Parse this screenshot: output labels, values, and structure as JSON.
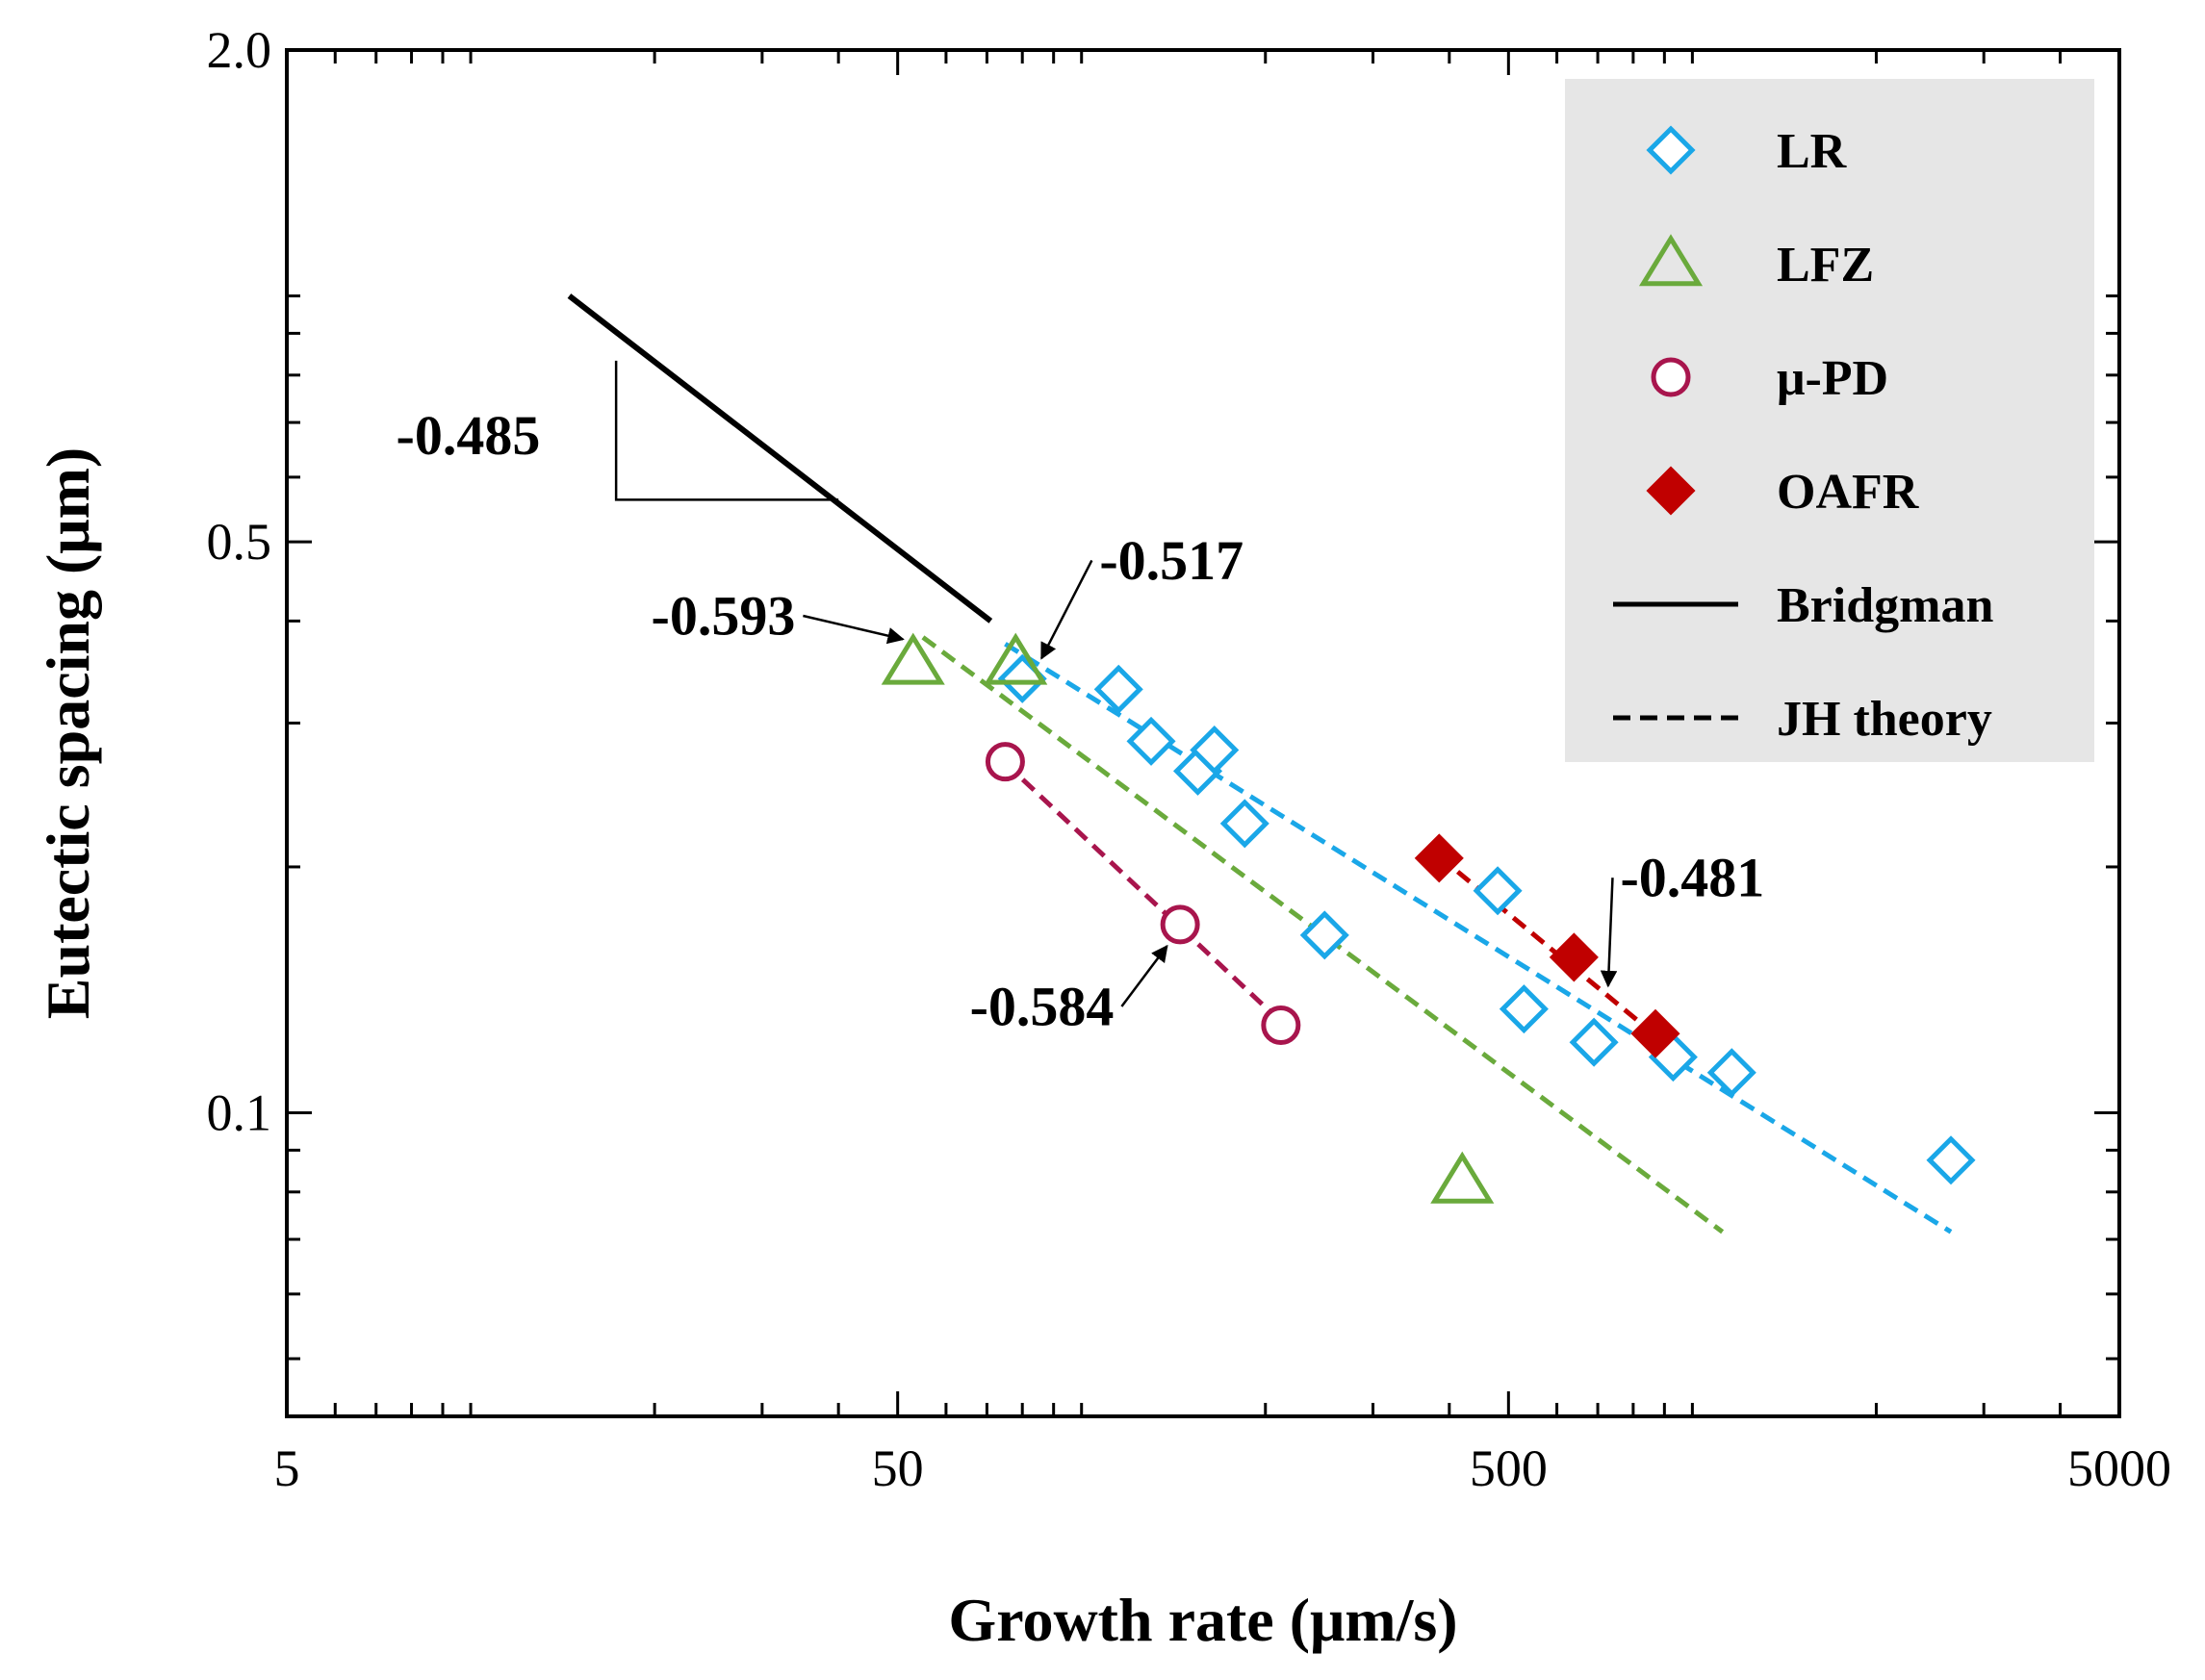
{
  "chart_data": {
    "type": "scatter",
    "title": "",
    "xlabel": "Growth rate (μm/s)",
    "ylabel": "Eutectic spacing (μm)",
    "xscale": "log",
    "yscale": "log",
    "xlim": [
      5,
      5000
    ],
    "ylim": [
      0.0425,
      2.0
    ],
    "x_ticks": [
      5,
      50,
      500,
      5000
    ],
    "x_tick_labels": [
      "5",
      "50",
      "500",
      "5000"
    ],
    "y_ticks": [
      0.1,
      0.5,
      2.0
    ],
    "y_tick_labels": [
      "0.1",
      "0.5",
      "2.0"
    ],
    "grid": false,
    "legend_position": "top-right",
    "series": [
      {
        "name": "LR",
        "marker": "diamond-open",
        "color": "#1aa7e8",
        "x": [
          80,
          115,
          130,
          155,
          165,
          185,
          250,
          480,
          530,
          690,
          930,
          1160,
          2650
        ],
        "y": [
          0.34,
          0.33,
          0.285,
          0.262,
          0.278,
          0.226,
          0.165,
          0.187,
          0.134,
          0.122,
          0.117,
          0.112,
          0.0875
        ]
      },
      {
        "name": "LFZ",
        "marker": "triangle-open",
        "color": "#6aaa3c",
        "x": [
          53,
          78,
          420
        ],
        "y": [
          0.356,
          0.356,
          0.0825
        ]
      },
      {
        "name": "μ-PD",
        "marker": "circle-open",
        "color": "#a8154d",
        "x": [
          75,
          145,
          212
        ],
        "y": [
          0.269,
          0.17,
          0.128
        ]
      },
      {
        "name": "OAFR",
        "marker": "diamond-filled",
        "color": "#c00000",
        "x": [
          385,
          640,
          870
        ],
        "y": [
          0.205,
          0.155,
          0.125
        ]
      },
      {
        "name": "Bridgman",
        "style": "solid-line",
        "color": "#000000"
      },
      {
        "name": "JH theory",
        "style": "dashed-line",
        "color": "#000000"
      }
    ],
    "fit_lines": [
      {
        "series": "LR",
        "color": "#1aa7e8",
        "x": [
          75,
          2650
        ],
        "y": [
          0.375,
          0.0715
        ],
        "slope_label": "-0.517"
      },
      {
        "series": "LFZ",
        "color": "#6aaa3c",
        "x": [
          55,
          1120
        ],
        "y": [
          0.382,
          0.0715
        ],
        "slope_label": "-0.593"
      },
      {
        "series": "μ-PD",
        "color": "#a8154d",
        "x": [
          75,
          215
        ],
        "y": [
          0.268,
          0.128
        ],
        "slope_label": "-0.584"
      },
      {
        "series": "OAFR",
        "color": "#c00000",
        "x": [
          385,
          875
        ],
        "y": [
          0.206,
          0.124
        ],
        "slope_label": "-0.481"
      }
    ],
    "bridgman_line": {
      "x": [
        14.5,
        71
      ],
      "y": [
        1.0,
        0.4
      ]
    },
    "slope_triangle": {
      "corner_x": 17.3,
      "top_y": 0.833,
      "bottom_y": 0.563,
      "right_x": 40
    },
    "annotations": [
      {
        "text": "-0.485",
        "x": 13.0,
        "y": 0.64,
        "anchor": "end"
      },
      {
        "text": "-0.593",
        "x": 34,
        "y": 0.385,
        "anchor": "end",
        "arrow_to": [
          51,
          0.38
        ]
      },
      {
        "text": "-0.517",
        "x": 107,
        "y": 0.45,
        "anchor": "start",
        "arrow_to": [
          86,
          0.36
        ]
      },
      {
        "text": "-0.584",
        "x": 113,
        "y": 0.128,
        "anchor": "end",
        "arrow_to": [
          138,
          0.16
        ]
      },
      {
        "text": "-0.481",
        "x": 1000,
        "y": 0.184,
        "anchor": "middle",
        "arrow_to": [
          728,
          0.143
        ]
      }
    ]
  }
}
